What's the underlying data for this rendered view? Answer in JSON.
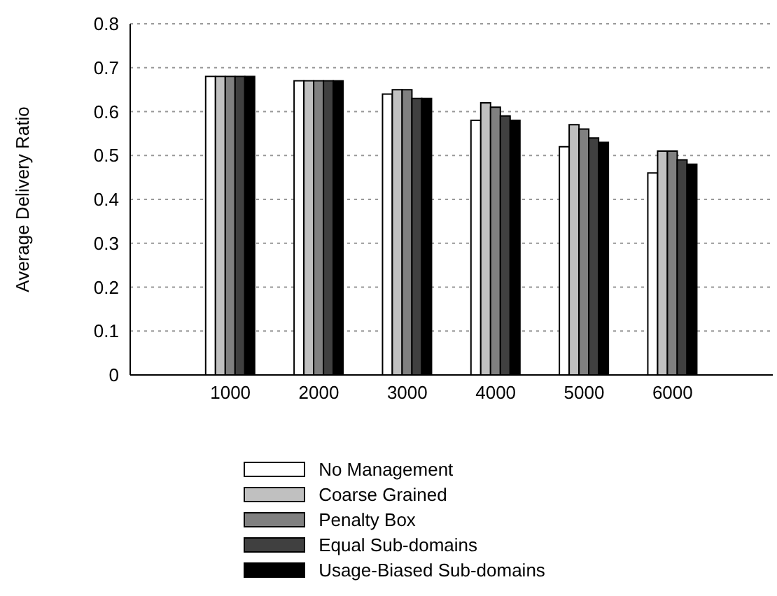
{
  "chart_data": {
    "type": "bar",
    "ylabel": "Average Delivery Ratio",
    "categories": [
      "1000",
      "2000",
      "3000",
      "4000",
      "5000",
      "6000"
    ],
    "series": [
      {
        "name": "No Management",
        "color": "#ffffff",
        "values": [
          0.68,
          0.67,
          0.64,
          0.58,
          0.52,
          0.46
        ]
      },
      {
        "name": "Coarse Grained",
        "color": "#c0c0c0",
        "values": [
          0.68,
          0.67,
          0.65,
          0.62,
          0.57,
          0.51
        ]
      },
      {
        "name": "Penalty Box",
        "color": "#808080",
        "values": [
          0.68,
          0.67,
          0.65,
          0.61,
          0.56,
          0.51
        ]
      },
      {
        "name": "Equal Sub-domains",
        "color": "#404040",
        "values": [
          0.68,
          0.67,
          0.63,
          0.59,
          0.54,
          0.49
        ]
      },
      {
        "name": "Usage-Biased Sub-domains",
        "color": "#000000",
        "values": [
          0.68,
          0.67,
          0.63,
          0.58,
          0.53,
          0.48
        ]
      }
    ],
    "ylim": [
      0,
      0.8
    ],
    "yticks": [
      0,
      0.1,
      0.2,
      0.3,
      0.4,
      0.5,
      0.6,
      0.7,
      0.8
    ],
    "grid": "y",
    "legend": "bottom"
  }
}
